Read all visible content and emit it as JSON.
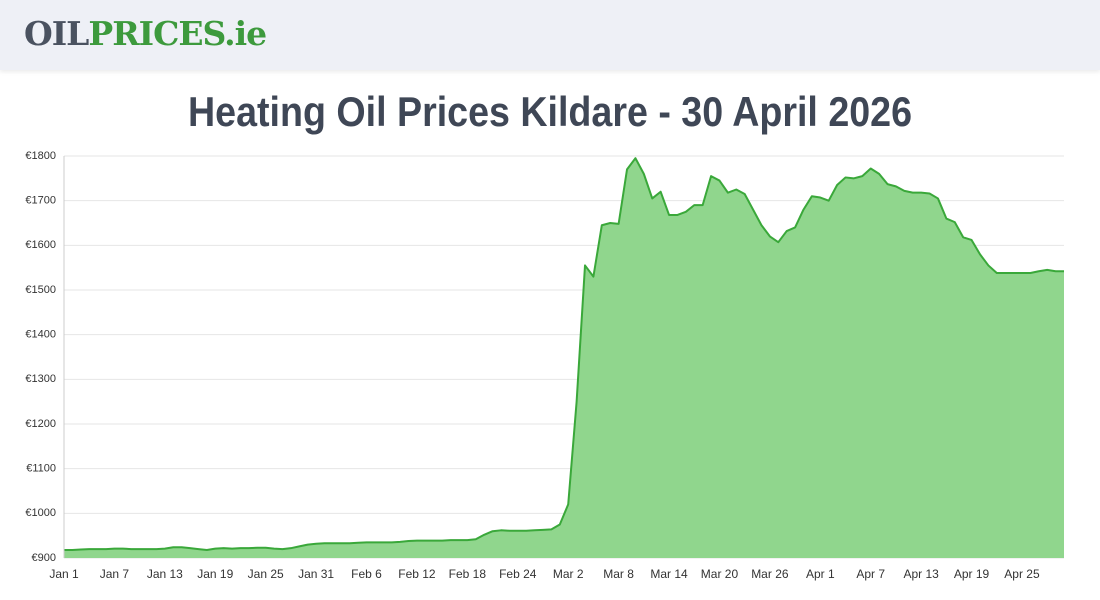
{
  "header": {
    "logo_left": "OIL",
    "logo_right": "PRICES.ie"
  },
  "chart_data": {
    "type": "area",
    "title": "Heating Oil Prices Kildare - 30 April 2026",
    "categories": [
      "Jan 1",
      null,
      null,
      null,
      null,
      null,
      "Jan 7",
      null,
      null,
      null,
      null,
      null,
      "Jan 13",
      null,
      null,
      null,
      null,
      null,
      "Jan 19",
      null,
      null,
      null,
      null,
      null,
      "Jan 25",
      null,
      null,
      null,
      null,
      null,
      "Jan 31",
      null,
      null,
      null,
      null,
      null,
      "Feb 6",
      null,
      null,
      null,
      null,
      null,
      "Feb 12",
      null,
      null,
      null,
      null,
      null,
      "Feb 18",
      null,
      null,
      null,
      null,
      null,
      "Feb 24",
      null,
      null,
      null,
      null,
      null,
      "Mar 2",
      null,
      null,
      null,
      null,
      null,
      "Mar 8",
      null,
      null,
      null,
      null,
      null,
      "Mar 14",
      null,
      null,
      null,
      null,
      null,
      "Mar 20",
      null,
      null,
      null,
      null,
      null,
      "Mar 26",
      null,
      null,
      null,
      null,
      null,
      "Apr 1",
      null,
      null,
      null,
      null,
      null,
      "Apr 7",
      null,
      null,
      null,
      null,
      null,
      "Apr 13",
      null,
      null,
      null,
      null,
      null,
      "Apr 19",
      null,
      null,
      null,
      null,
      null,
      "Apr 25",
      null,
      null,
      null,
      null,
      null
    ],
    "values": [
      918,
      918,
      919,
      920,
      920,
      920,
      921,
      921,
      920,
      920,
      920,
      920,
      921,
      924,
      924,
      922,
      920,
      918,
      921,
      922,
      921,
      922,
      922,
      923,
      923,
      921,
      920,
      922,
      926,
      930,
      932,
      933,
      933,
      933,
      933,
      934,
      935,
      935,
      935,
      935,
      936,
      938,
      939,
      939,
      939,
      939,
      940,
      940,
      940,
      942,
      952,
      960,
      962,
      961,
      961,
      961,
      962,
      963,
      964,
      975,
      1020,
      1250,
      1555,
      1530,
      1645,
      1650,
      1648,
      1770,
      1795,
      1760,
      1705,
      1720,
      1668,
      1668,
      1675,
      1690,
      1690,
      1755,
      1745,
      1718,
      1725,
      1715,
      1680,
      1645,
      1620,
      1607,
      1632,
      1640,
      1680,
      1710,
      1707,
      1700,
      1735,
      1752,
      1750,
      1755,
      1772,
      1760,
      1737,
      1732,
      1722,
      1718,
      1718,
      1716,
      1705,
      1660,
      1652,
      1618,
      1612,
      1580,
      1555,
      1538,
      1538,
      1538,
      1538,
      1538,
      1542,
      1545,
      1542,
      1542
    ],
    "color": "#3aa83a",
    "fill": "#90d68d",
    "ylim": [
      900,
      1800
    ],
    "yticks": [
      {
        "value": 900,
        "label": "€900"
      },
      {
        "value": 1000,
        "label": "€1000"
      },
      {
        "value": 1100,
        "label": "€1100"
      },
      {
        "value": 1200,
        "label": "€1200"
      },
      {
        "value": 1300,
        "label": "€1300"
      },
      {
        "value": 1400,
        "label": "€1400"
      },
      {
        "value": 1500,
        "label": "€1500"
      },
      {
        "value": 1600,
        "label": "€1600"
      },
      {
        "value": 1700,
        "label": "€1700"
      },
      {
        "value": 1800,
        "label": "€1800"
      }
    ],
    "grid": true
  }
}
